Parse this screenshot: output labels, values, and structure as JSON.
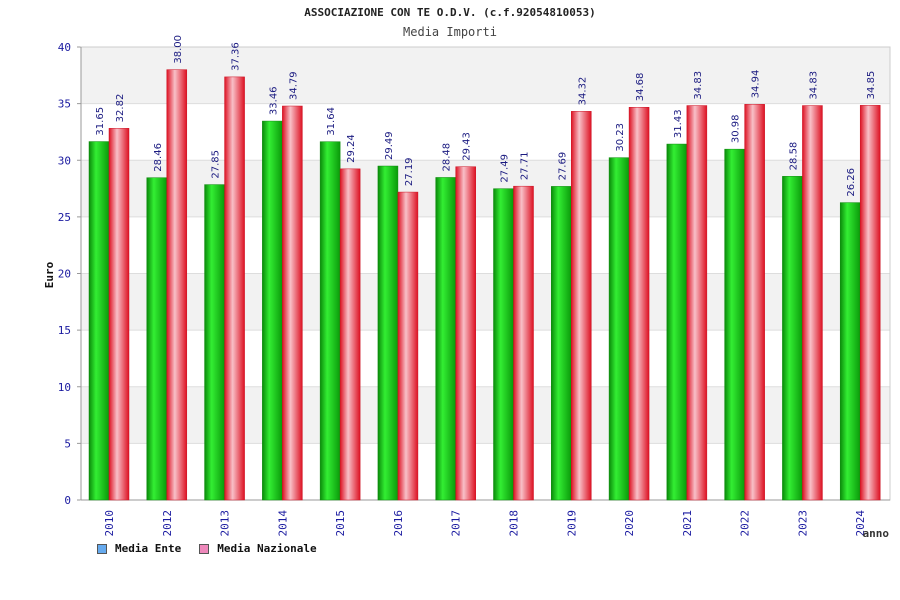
{
  "chart_data": {
    "type": "bar",
    "title": "ASSOCIAZIONE CON TE O.D.V. (c.f.92054810053)",
    "subtitle": "Media Importi",
    "xlabel": "anno",
    "ylabel": "Euro",
    "ylim": [
      0,
      40
    ],
    "yticks": [
      "0",
      "5",
      "10",
      "15",
      "20",
      "25",
      "30",
      "35",
      "40"
    ],
    "categories": [
      "2010",
      "2012",
      "2013",
      "2014",
      "2015",
      "2016",
      "2017",
      "2018",
      "2019",
      "2020",
      "2021",
      "2022",
      "2023",
      "2024"
    ],
    "series": [
      {
        "name": "Media Ente",
        "color": "#11bb11",
        "values": [
          31.65,
          28.46,
          27.85,
          33.46,
          31.64,
          29.49,
          28.48,
          27.49,
          27.69,
          30.23,
          31.43,
          30.98,
          28.58,
          26.26
        ],
        "labels": [
          "31.65",
          "28.46",
          "27.85",
          "33.46",
          "31.64",
          "29.49",
          "28.48",
          "27.49",
          "27.69",
          "30.23",
          "31.43",
          "30.98",
          "28.58",
          "26.26"
        ]
      },
      {
        "name": "Media Nazionale",
        "color": "#ee1122",
        "values": [
          32.82,
          38.0,
          37.36,
          34.79,
          29.24,
          27.19,
          29.43,
          27.71,
          34.32,
          34.68,
          34.83,
          34.94,
          34.83,
          34.85
        ],
        "labels": [
          "32.82",
          "38.00",
          "37.36",
          "34.79",
          "29.24",
          "27.19",
          "29.43",
          "27.71",
          "34.32",
          "34.68",
          "34.83",
          "34.94",
          "34.83",
          "34.85"
        ]
      }
    ],
    "legend": [
      {
        "label": "Media Ente",
        "color": "#66aaee"
      },
      {
        "label": "Media Nazionale",
        "color": "#ee88bb"
      }
    ],
    "legend_position": "bottom-left",
    "grid": true
  }
}
